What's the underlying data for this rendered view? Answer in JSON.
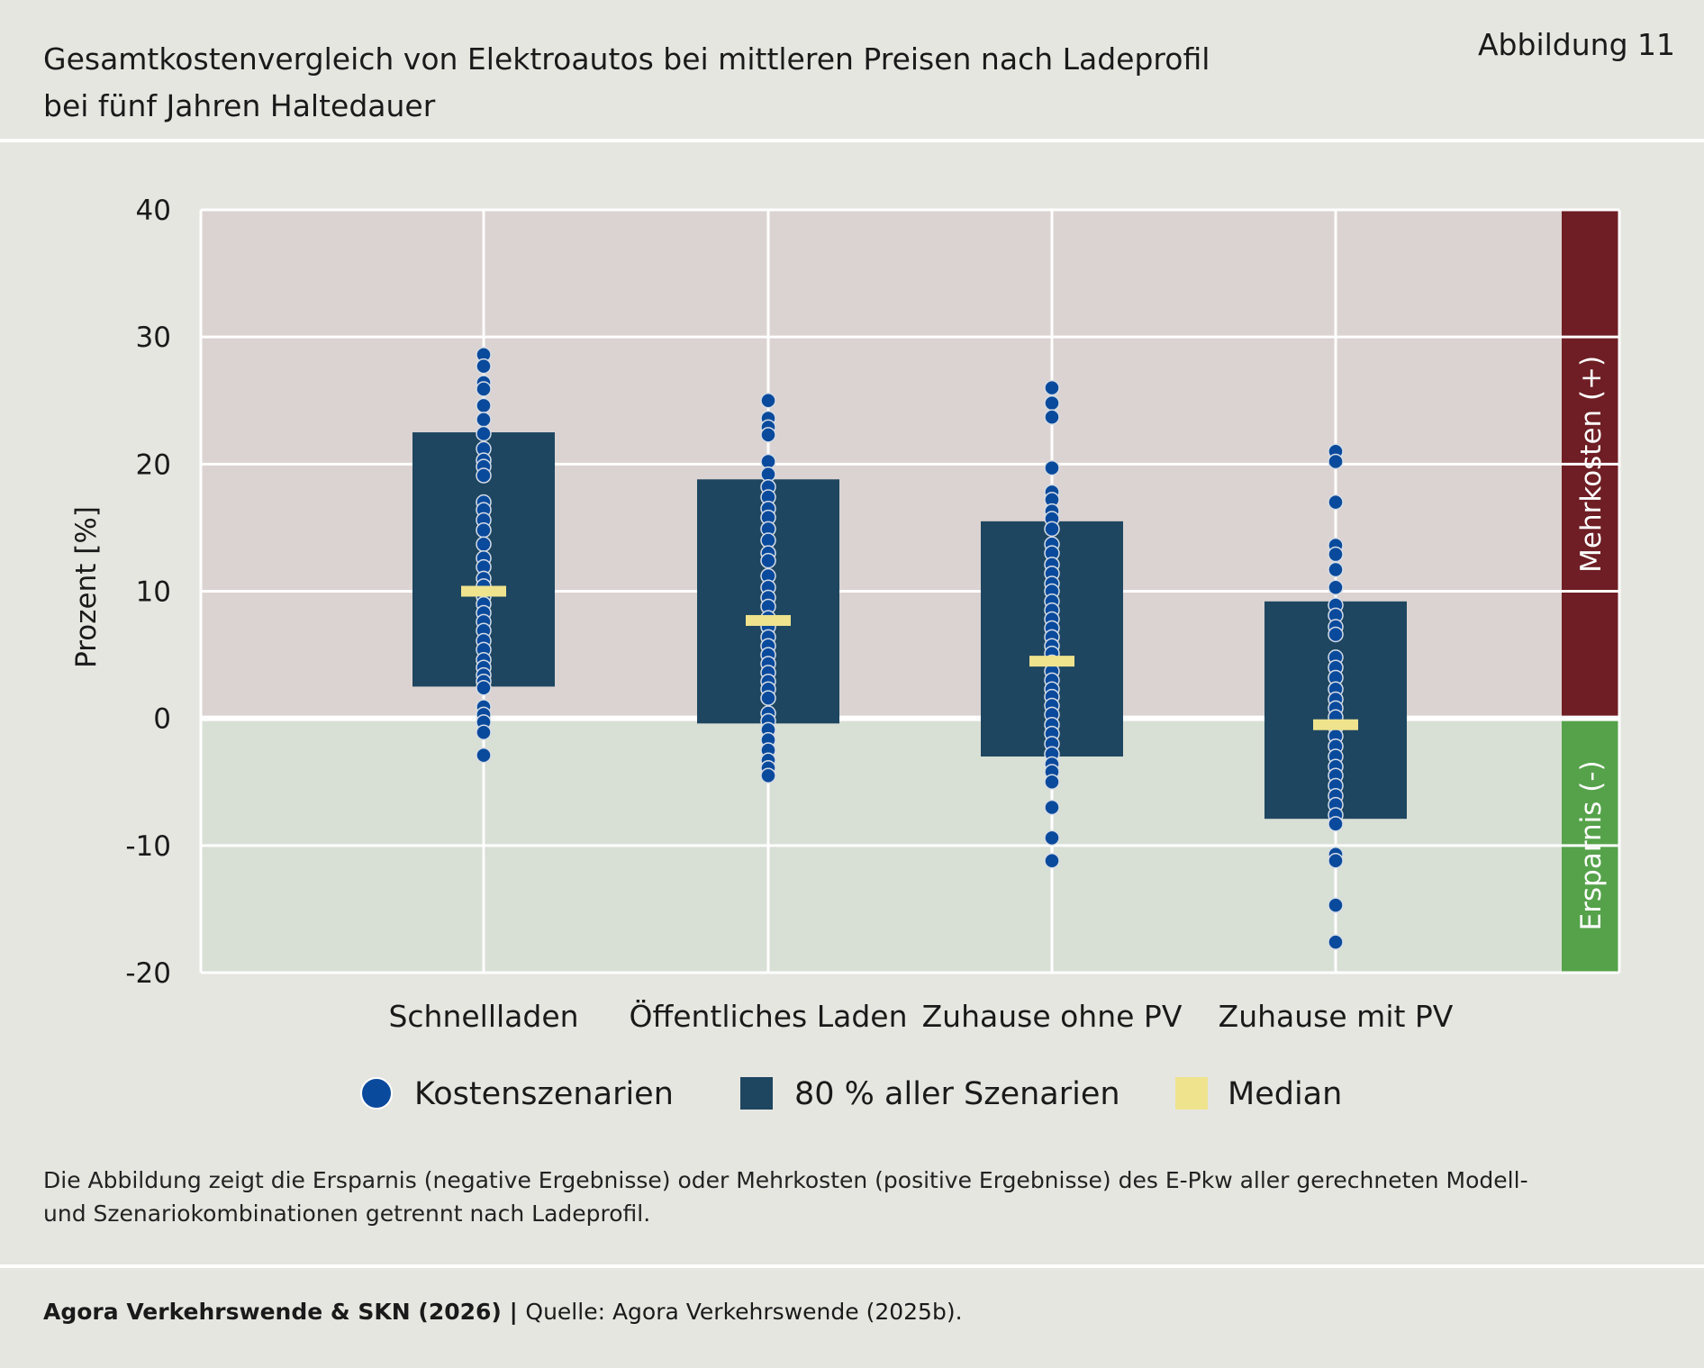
{
  "header": {
    "title_line1": "Gesamtkostenvergleich von Elektroautos bei mittleren Preisen nach Ladeprofil",
    "title_line2": "bei fünf Jahren Haltedauer",
    "figure_label": "Abbildung 11"
  },
  "chart_data": {
    "type": "scatter",
    "ylabel": "Prozent [%]",
    "ylim": [
      -20,
      40
    ],
    "yticks": [
      "40",
      "30",
      "20",
      "10",
      "0",
      "-10",
      "-20"
    ],
    "grid": true,
    "categories": [
      "Schnellladen",
      "Öffentliches Laden",
      "Zuhause ohne PV",
      "Zuhause mit PV"
    ],
    "range80": [
      [
        2.5,
        22.5
      ],
      [
        -0.4,
        18.8
      ],
      [
        -3.0,
        15.5
      ],
      [
        -7.9,
        9.2
      ]
    ],
    "median": [
      10.0,
      7.7,
      4.5,
      -0.5
    ],
    "points": [
      [
        28.6,
        27.7,
        26.4,
        25.9,
        24.6,
        23.5,
        22.4,
        21.2,
        20.3,
        19.8,
        19.1,
        17.0,
        16.4,
        15.6,
        14.8,
        13.7,
        12.6,
        11.9,
        11.0,
        10.4,
        9.6,
        9.0,
        8.3,
        7.6,
        6.9,
        6.1,
        5.4,
        4.6,
        4.0,
        3.4,
        2.9,
        2.4,
        0.9,
        0.3,
        -0.3,
        -1.1,
        -2.9
      ],
      [
        25.0,
        23.6,
        22.9,
        22.3,
        20.2,
        19.2,
        18.2,
        17.4,
        16.5,
        15.8,
        14.9,
        14.0,
        13.0,
        12.4,
        11.2,
        10.3,
        9.5,
        8.8,
        7.9,
        7.2,
        6.4,
        5.7,
        5.0,
        4.3,
        3.6,
        2.9,
        2.3,
        1.6,
        0.4,
        -0.2,
        -0.9,
        -1.7,
        -2.5,
        -3.3,
        -3.9,
        -4.5
      ],
      [
        26.0,
        24.8,
        23.7,
        19.7,
        17.8,
        17.2,
        16.3,
        15.7,
        14.9,
        13.7,
        13.0,
        12.1,
        11.4,
        10.6,
        10.0,
        9.2,
        8.5,
        7.8,
        7.1,
        6.4,
        5.7,
        5.1,
        4.4,
        3.7,
        3.0,
        2.3,
        1.7,
        1.0,
        0.3,
        -0.5,
        -1.2,
        -2.0,
        -2.8,
        -3.6,
        -4.2,
        -5.0,
        -7.0,
        -9.4,
        -11.2
      ],
      [
        21.0,
        20.2,
        17.0,
        13.6,
        12.9,
        11.7,
        10.3,
        8.9,
        8.1,
        7.2,
        6.6,
        4.8,
        4.0,
        3.2,
        2.3,
        1.5,
        0.8,
        0.1,
        -0.7,
        -1.4,
        -2.2,
        -3.0,
        -3.8,
        -4.5,
        -5.3,
        -6.1,
        -6.8,
        -7.6,
        -8.3,
        -10.7,
        -11.2,
        -14.7,
        -17.6
      ]
    ],
    "bands": {
      "positive_label": "Mehrkosten (+)",
      "negative_label": "Ersparnis (-)"
    },
    "legend": {
      "placement": "bottom",
      "entries": [
        "Kostenszenarien",
        "80 % aller Szenarien",
        "Median"
      ]
    },
    "colors": {
      "points": "#0a4a9c",
      "range80": "#1e4660",
      "median": "#efe38e",
      "positive_band": "#6e1e24",
      "negative_band": "#55a24a",
      "positive_bg": "#dbd3d1",
      "negative_bg": "#d8dfd5"
    }
  },
  "note": {
    "line1": "Die Abbildung zeigt die Ersparnis (negative Ergebnisse) oder Mehrkosten (positive Ergebnisse) des E-Pkw aller gerechneten Modell-",
    "line2": "und Szenariokombinationen getrennt nach Ladeprofil."
  },
  "footer": {
    "credit": "Agora Verkehrswende & SKN (2026)",
    "separator": " | ",
    "source": "Quelle: Agora Verkehrswende (2025b)."
  }
}
